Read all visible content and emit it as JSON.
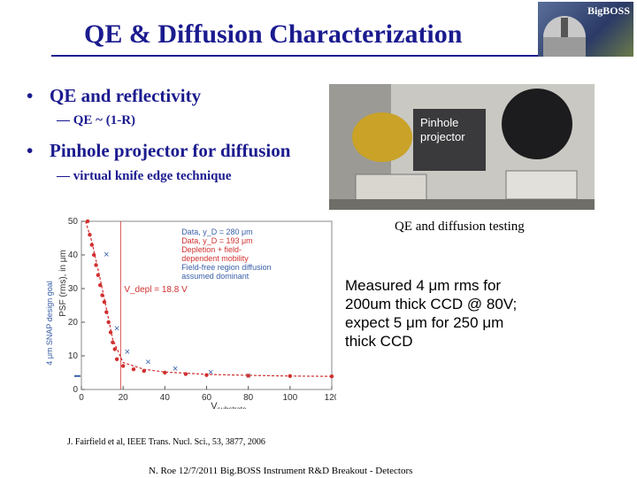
{
  "title": "QE & Diffusion Characterization",
  "logo": {
    "text": "BigBOSS"
  },
  "bullets": [
    {
      "text": "QE and reflectivity",
      "sub": "— QE ~ (1-R)"
    },
    {
      "text": "Pinhole projector for diffusion",
      "sub": "— virtual knife edge technique"
    }
  ],
  "photo": {
    "label_line1": "Pinhole",
    "label_line2": "projector"
  },
  "caption": "QE and diffusion testing",
  "measured": {
    "line1": "Measured 4 μm rms for",
    "line2": "200um thick CCD @ 80V;",
    "line3": "expect 5 μm for 250 μm",
    "line4": "thick CCD"
  },
  "chart_data": {
    "type": "scatter",
    "xlabel": "V",
    "xlabel_sub": "substrate",
    "ylabel": "PSF (rms), in μm",
    "side_label": "4 μm SNAP design goal",
    "xlim": [
      0,
      120
    ],
    "ylim": [
      0,
      50
    ],
    "xticks": [
      0,
      20,
      40,
      60,
      80,
      100,
      120
    ],
    "yticks": [
      0,
      10,
      20,
      30,
      40,
      50
    ],
    "legend": [
      "Data, y_D = 280 μm",
      "Data, y_D = 193 μm",
      "Depletion + field-",
      "dependent mobility",
      "Field-free region diffusion",
      "assumed dominant"
    ],
    "annotation": "V_depl = 18.8 V",
    "series": [
      {
        "name": "Data, y_D = 280 μm",
        "color": "#3a5fa8",
        "x": [
          12,
          17,
          22,
          32,
          45,
          62,
          80
        ],
        "y": [
          40,
          18,
          11,
          8,
          6,
          5,
          4
        ]
      },
      {
        "name": "Data, y_D = 193 μm",
        "color": "#d13030",
        "x": [
          3,
          4,
          5,
          6,
          7,
          8,
          9,
          10,
          11,
          12,
          13,
          14,
          15,
          16,
          17,
          20,
          25,
          30,
          40,
          50,
          60,
          80,
          100,
          120
        ],
        "y": [
          50,
          46,
          43,
          40,
          37,
          34,
          31,
          28,
          26,
          23,
          20,
          17,
          14,
          12,
          9,
          7,
          6,
          5.5,
          5,
          4.6,
          4.3,
          4.1,
          4,
          3.9
        ]
      }
    ],
    "model_curve": {
      "x": [
        2,
        5,
        10,
        15,
        20,
        30,
        40,
        60,
        80,
        100,
        120
      ],
      "y": [
        50,
        44,
        30,
        15,
        8,
        6,
        5.2,
        4.5,
        4.2,
        4.0,
        3.9
      ]
    },
    "vdepl_x": 18.8,
    "goal_y": 4
  },
  "reference": "J. Fairfield et al, IEEE Trans. Nucl. Sci., 53, 3877, 2006",
  "footer": "N. Roe 12/7/2011 Big.BOSS Instrument R&D Breakout - Detectors"
}
